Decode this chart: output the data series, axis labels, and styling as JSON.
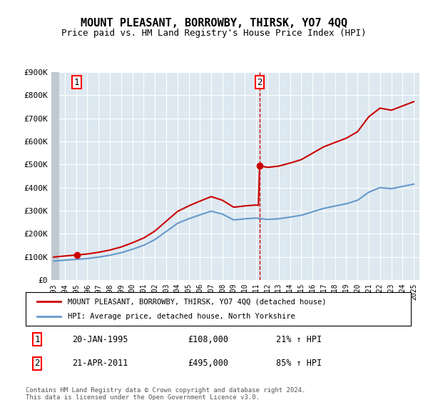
{
  "title": "MOUNT PLEASANT, BORROWBY, THIRSK, YO7 4QQ",
  "subtitle": "Price paid vs. HM Land Registry's House Price Index (HPI)",
  "legend_line1": "MOUNT PLEASANT, BORROWBY, THIRSK, YO7 4QQ (detached house)",
  "legend_line2": "HPI: Average price, detached house, North Yorkshire",
  "annotation1_date": "20-JAN-1995",
  "annotation1_price": "£108,000",
  "annotation1_hpi": "21% ↑ HPI",
  "annotation2_date": "21-APR-2011",
  "annotation2_price": "£495,000",
  "annotation2_hpi": "85% ↑ HPI",
  "footnote": "Contains HM Land Registry data © Crown copyright and database right 2024.\nThis data is licensed under the Open Government Licence v3.0.",
  "red_color": "#cc0000",
  "blue_color": "#6699cc",
  "ylim": [
    0,
    900000
  ],
  "yticks": [
    0,
    100000,
    200000,
    300000,
    400000,
    500000,
    600000,
    700000,
    800000,
    900000
  ],
  "ytick_labels": [
    "£0",
    "£100K",
    "£200K",
    "£300K",
    "£400K",
    "£500K",
    "£600K",
    "£700K",
    "£800K",
    "£900K"
  ],
  "point1_x": 1995.05,
  "point1_y": 108000,
  "point2_x": 2011.3,
  "point2_y": 495000,
  "vline_x": 2011.3,
  "hatch_end_x": 1993.5,
  "background_color": "#dde8f0",
  "hatch_color": "#c0c8d0",
  "grid_color": "#ffffff",
  "xlim_left": 1992.8,
  "xlim_right": 2025.5
}
